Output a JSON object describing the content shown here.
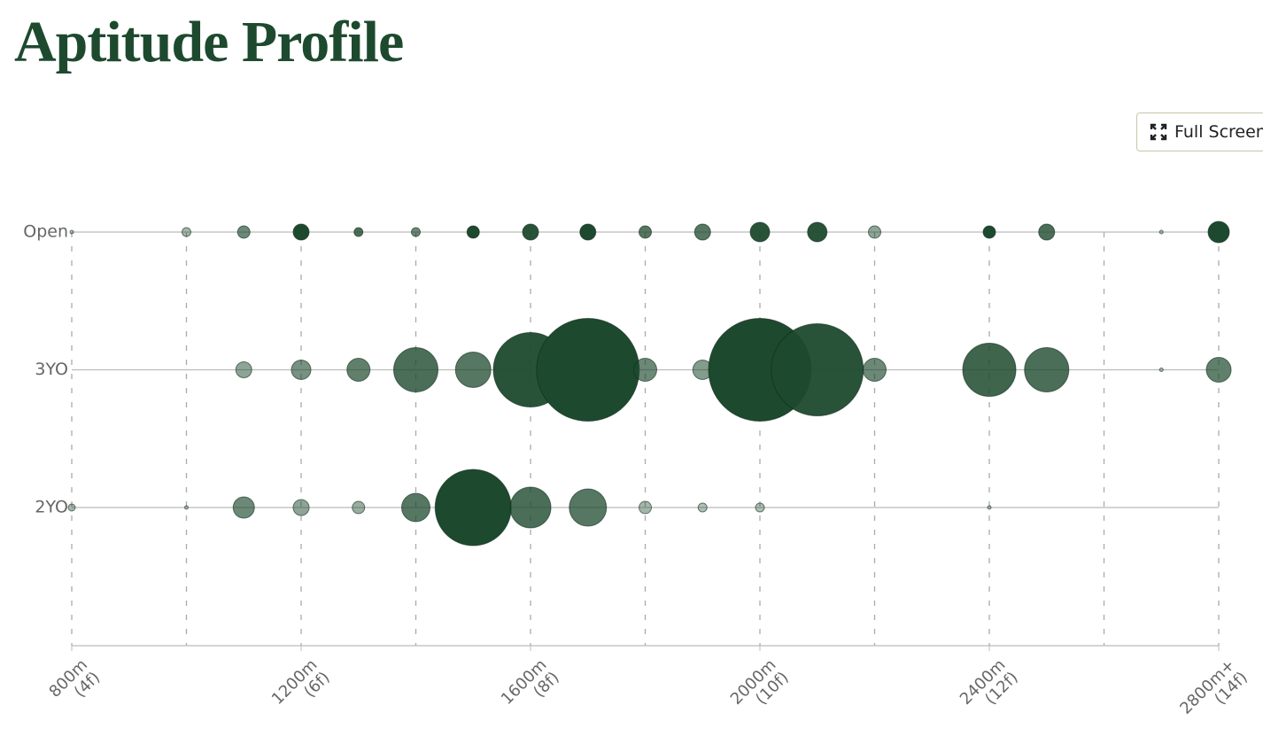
{
  "chart_data": {
    "type": "bubble",
    "title": "Aptitude Profile",
    "x": [
      800,
      900,
      1000,
      1100,
      1200,
      1300,
      1400,
      1500,
      1600,
      1700,
      1800,
      1900,
      2000,
      2100,
      2200,
      2300,
      2400,
      2500,
      2600,
      2700,
      2800
    ],
    "color": "#1d4a2e",
    "series": [
      {
        "name": "Open",
        "values": [
          2,
          null,
          5,
          7,
          9,
          5,
          5,
          7,
          9,
          9,
          7,
          9,
          11,
          11,
          7,
          null,
          7,
          9,
          null,
          2,
          12
        ],
        "intensity": [
          0.3,
          null,
          0.4,
          0.65,
          1,
          0.8,
          0.65,
          1,
          0.95,
          1,
          0.75,
          0.75,
          0.95,
          0.95,
          0.5,
          null,
          1,
          0.8,
          null,
          0.3,
          1
        ]
      },
      {
        "name": "3YO",
        "values": [
          null,
          null,
          null,
          9,
          11,
          13,
          25,
          20,
          42,
          58,
          13,
          11,
          58,
          52,
          13,
          null,
          30,
          25,
          null,
          2,
          14
        ],
        "intensity": [
          null,
          null,
          null,
          0.5,
          0.6,
          0.7,
          0.8,
          0.75,
          0.95,
          1,
          0.65,
          0.55,
          1,
          0.95,
          0.65,
          null,
          0.85,
          0.8,
          null,
          0.3,
          0.7
        ]
      },
      {
        "name": "2YO",
        "values": [
          4,
          null,
          2,
          12,
          9,
          7,
          16,
          43,
          23,
          21,
          7,
          5,
          5,
          null,
          null,
          null,
          2,
          null,
          null,
          null,
          null
        ],
        "intensity": [
          0.4,
          null,
          0.3,
          0.65,
          0.5,
          0.45,
          0.75,
          1,
          0.8,
          0.75,
          0.4,
          0.35,
          0.35,
          null,
          null,
          null,
          0.3,
          null,
          null,
          null,
          null
        ]
      }
    ],
    "xlim": [
      800,
      2800
    ],
    "xticks": [
      {
        "value": 800,
        "label": "800m\n(4f)"
      },
      {
        "value": 1200,
        "label": "1200m\n(6f)"
      },
      {
        "value": 1600,
        "label": "1600m\n(8f)"
      },
      {
        "value": 2000,
        "label": "2000m\n(10f)"
      },
      {
        "value": 2400,
        "label": "2400m\n(12f)"
      },
      {
        "value": 2800,
        "label": "2800m+\n(14f)"
      }
    ],
    "xgrid": [
      800,
      1000,
      1200,
      1400,
      1600,
      1800,
      2000,
      2200,
      2400,
      2600,
      2800
    ]
  },
  "toolbar": {
    "full_screen": "Full Screen"
  }
}
